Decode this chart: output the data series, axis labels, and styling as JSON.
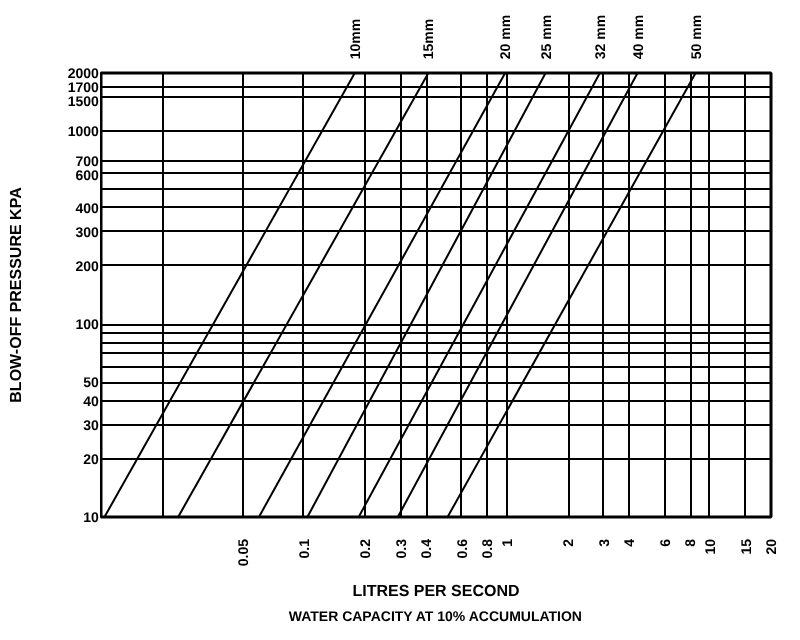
{
  "chart_data": {
    "type": "line",
    "xlabel": "LITRES PER SECOND",
    "ylabel": "BLOW-OFF PRESSURE KPA",
    "annotations": [
      "WATER CAPACITY AT 10% ACCUMULATION"
    ],
    "log": "xy",
    "grid": true,
    "legend": false,
    "marker": "none",
    "line_style": "solid",
    "xlim": [
      0.01,
      20
    ],
    "ylim": [
      10,
      2000
    ],
    "xticks": [
      {
        "value": 0.02,
        "label": null
      },
      0.05,
      0.1,
      0.2,
      0.3,
      0.4,
      0.6,
      0.8,
      1,
      2,
      3,
      4,
      6,
      8,
      10,
      15,
      20
    ],
    "yticks": [
      10,
      20,
      30,
      40,
      50,
      {
        "value": 60,
        "label": null
      },
      {
        "value": 70,
        "label": null
      },
      {
        "value": 80,
        "label": null
      },
      {
        "value": 90,
        "label": null
      },
      100,
      200,
      300,
      400,
      {
        "value": 500,
        "label": null
      },
      600,
      700,
      1000,
      1500,
      1700,
      2000
    ],
    "series": [
      {
        "name": "10mm",
        "color": "#000000",
        "x": [
          0.0104,
          0.178
        ],
        "values": [
          10,
          2000
        ]
      },
      {
        "name": "15mm",
        "color": "#000000",
        "x": [
          0.024,
          0.41
        ],
        "values": [
          10,
          2000
        ]
      },
      {
        "name": "20 mm",
        "color": "#000000",
        "x": [
          0.06,
          0.98
        ],
        "values": [
          10,
          2000
        ]
      },
      {
        "name": "25 mm",
        "color": "#000000",
        "x": [
          0.104,
          1.55
        ],
        "values": [
          10,
          2000
        ]
      },
      {
        "name": "32 mm",
        "color": "#000000",
        "x": [
          0.186,
          2.87
        ],
        "values": [
          10,
          2000
        ]
      },
      {
        "name": "40 mm",
        "color": "#000000",
        "x": [
          0.29,
          4.4
        ],
        "values": [
          10,
          2000
        ]
      },
      {
        "name": "50 mm",
        "color": "#000000",
        "x": [
          0.51,
          8.5
        ],
        "values": [
          10,
          2000
        ]
      }
    ]
  }
}
